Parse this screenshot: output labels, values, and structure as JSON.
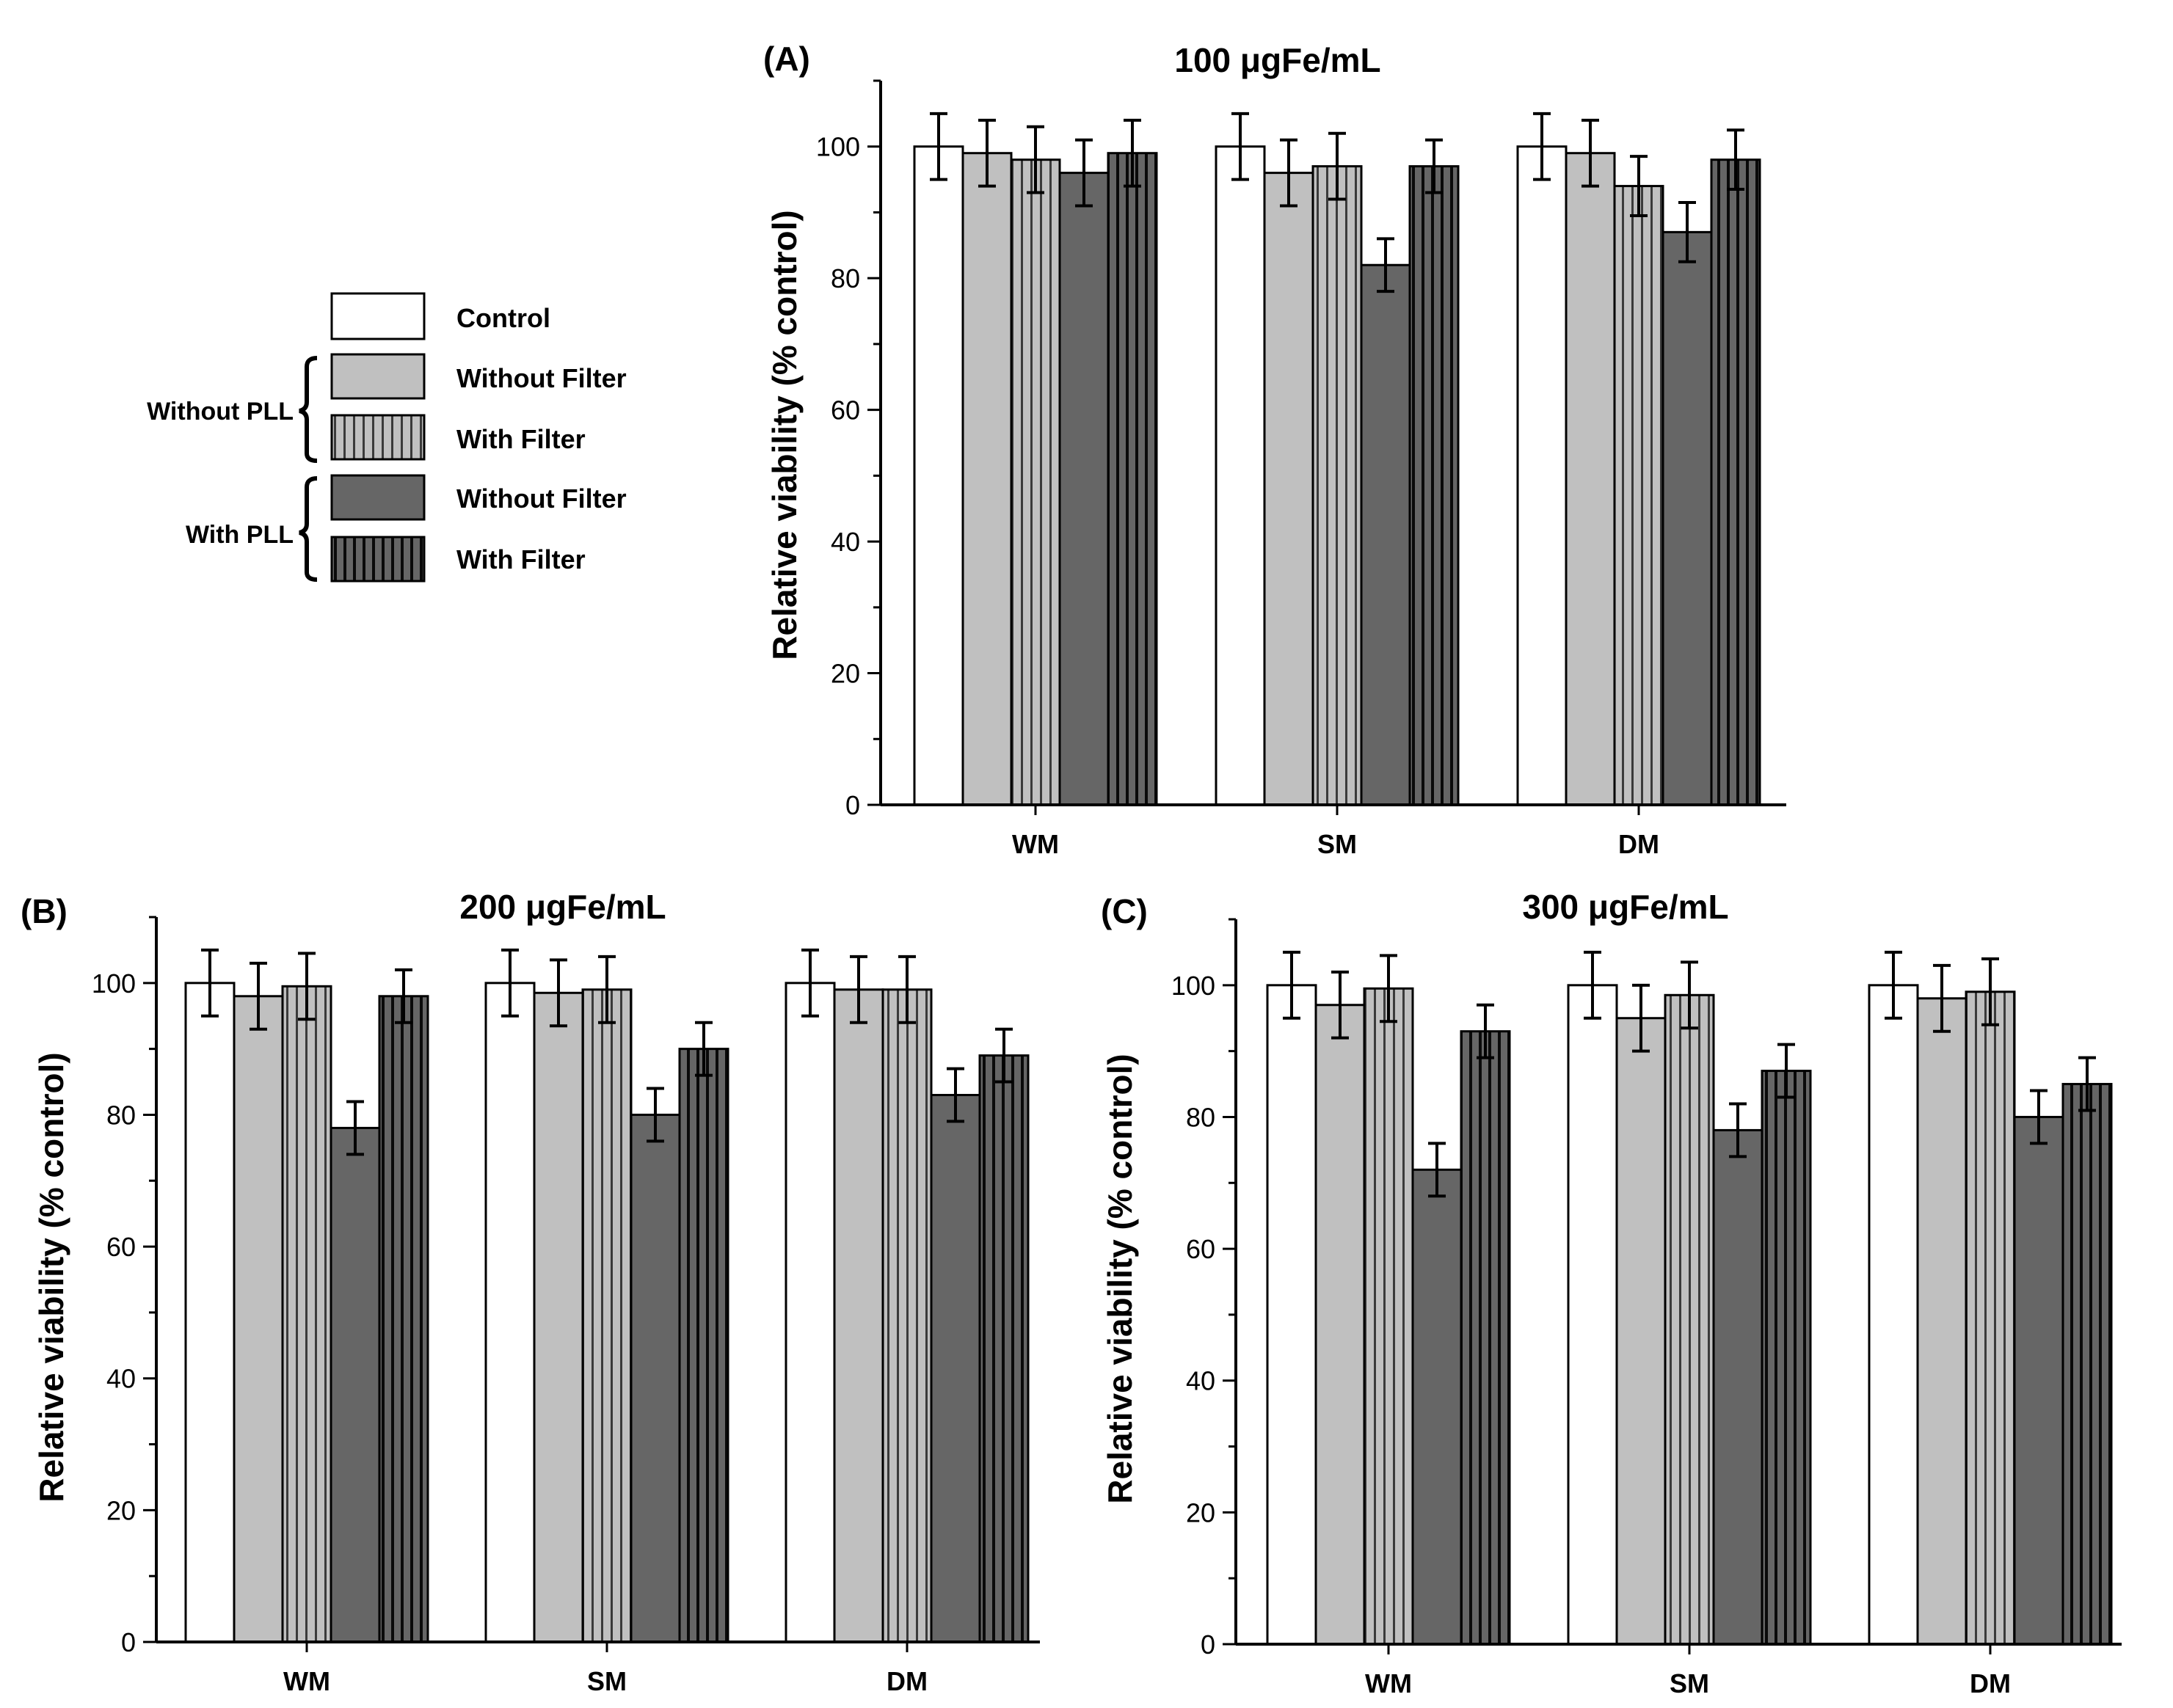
{
  "legend": {
    "items": [
      {
        "label": "Control"
      },
      {
        "label": "Without Filter"
      },
      {
        "label": "With Filter"
      },
      {
        "label": "Without Filter"
      },
      {
        "label": "With Filter"
      }
    ],
    "groups": [
      {
        "label": "Without PLL"
      },
      {
        "label": "With PLL"
      }
    ]
  },
  "series_styles": [
    {
      "name": "Control",
      "fill": "#ffffff",
      "striped": false
    },
    {
      "name": "Without PLL / Without Filter",
      "fill": "#c0c0c0",
      "striped": false
    },
    {
      "name": "Without PLL / With Filter",
      "fill": "#c0c0c0",
      "striped": true
    },
    {
      "name": "With PLL / Without Filter",
      "fill": "#666666",
      "striped": false
    },
    {
      "name": "With PLL / With Filter",
      "fill": "#666666",
      "striped": true
    }
  ],
  "chart_data": [
    {
      "type": "bar",
      "panel_label": "(A)",
      "title": "100 μgFe/mL",
      "ylabel": "Relative viability (% control)",
      "xlabel": "",
      "ylim": [
        0,
        110
      ],
      "yticks": [
        0,
        20,
        40,
        60,
        80,
        100
      ],
      "categories": [
        "WM",
        "SM",
        "DM"
      ],
      "series": [
        {
          "name": "Control",
          "values": [
            100,
            100,
            100
          ],
          "errors": [
            5,
            5,
            5
          ]
        },
        {
          "name": "Without PLL / Without Filter",
          "values": [
            99,
            96,
            99
          ],
          "errors": [
            5,
            5,
            5
          ]
        },
        {
          "name": "Without PLL / With Filter",
          "values": [
            98,
            97,
            94
          ],
          "errors": [
            5,
            5,
            4.5
          ]
        },
        {
          "name": "With PLL / Without Filter",
          "values": [
            96,
            82,
            87
          ],
          "errors": [
            5,
            4,
            4.5
          ]
        },
        {
          "name": "With PLL / With Filter",
          "values": [
            99,
            97,
            98
          ],
          "errors": [
            5,
            4,
            4.5
          ]
        }
      ]
    },
    {
      "type": "bar",
      "panel_label": "(B)",
      "title": "200 μgFe/mL",
      "ylabel": "Relative viability (% control)",
      "xlabel": "",
      "ylim": [
        0,
        110
      ],
      "yticks": [
        0,
        20,
        40,
        60,
        80,
        100
      ],
      "categories": [
        "WM",
        "SM",
        "DM"
      ],
      "series": [
        {
          "name": "Control",
          "values": [
            100,
            100,
            100
          ],
          "errors": [
            5,
            5,
            5
          ]
        },
        {
          "name": "Without PLL / Without Filter",
          "values": [
            98,
            98.5,
            99
          ],
          "errors": [
            5,
            5,
            5
          ]
        },
        {
          "name": "Without PLL / With Filter",
          "values": [
            99.5,
            99,
            99
          ],
          "errors": [
            5,
            5,
            5
          ]
        },
        {
          "name": "With PLL / Without Filter",
          "values": [
            78,
            80,
            83
          ],
          "errors": [
            4,
            4,
            4
          ]
        },
        {
          "name": "With PLL / With Filter",
          "values": [
            98,
            90,
            89
          ],
          "errors": [
            4,
            4,
            4
          ]
        }
      ]
    },
    {
      "type": "bar",
      "panel_label": "(C)",
      "title": "300 μgFe/mL",
      "ylabel": "Relative viability (% control)",
      "xlabel": "",
      "ylim": [
        0,
        110
      ],
      "yticks": [
        0,
        20,
        40,
        60,
        80,
        100
      ],
      "categories": [
        "WM",
        "SM",
        "DM"
      ],
      "series": [
        {
          "name": "Control",
          "values": [
            100,
            100,
            100
          ],
          "errors": [
            5,
            5,
            5
          ]
        },
        {
          "name": "Without PLL / Without Filter",
          "values": [
            97,
            95,
            98
          ],
          "errors": [
            5,
            5,
            5
          ]
        },
        {
          "name": "Without PLL / With Filter",
          "values": [
            99.5,
            98.5,
            99
          ],
          "errors": [
            5,
            5,
            5
          ]
        },
        {
          "name": "With PLL / Without Filter",
          "values": [
            72,
            78,
            80
          ],
          "errors": [
            4,
            4,
            4
          ]
        },
        {
          "name": "With PLL / With Filter",
          "values": [
            93,
            87,
            85
          ],
          "errors": [
            4,
            4,
            4
          ]
        }
      ]
    }
  ]
}
